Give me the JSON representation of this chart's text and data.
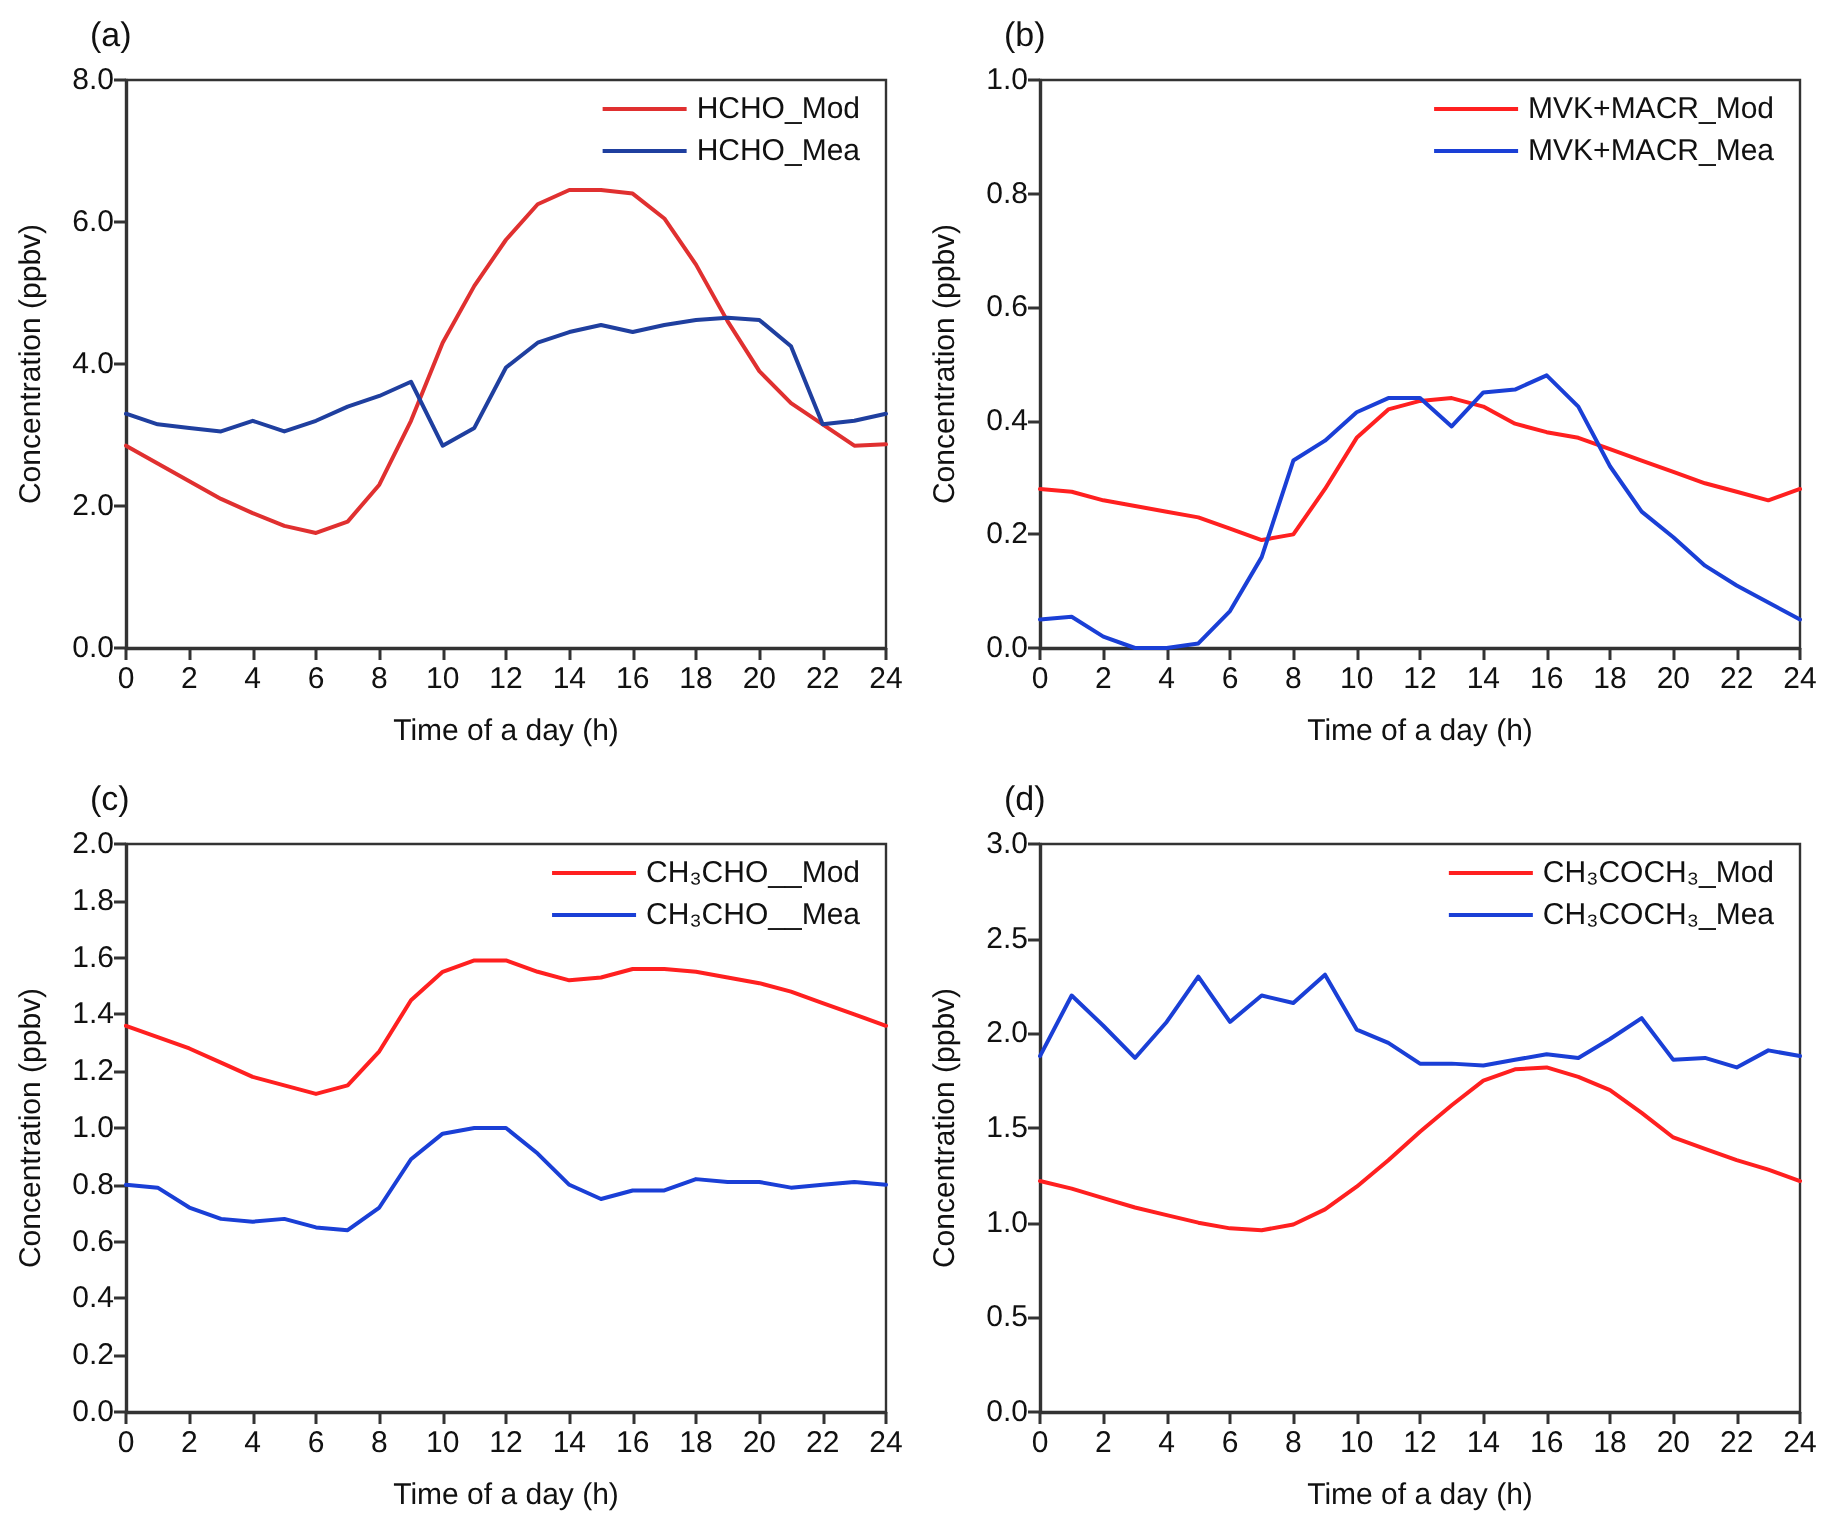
{
  "chart_data": [
    {
      "type": "line",
      "title": "(a)",
      "xlabel": "Time of a day (h)",
      "ylabel": "Concentration (ppbv)",
      "x": [
        0,
        1,
        2,
        3,
        4,
        5,
        6,
        7,
        8,
        9,
        10,
        11,
        12,
        13,
        14,
        15,
        16,
        17,
        18,
        19,
        20,
        21,
        22,
        23,
        24
      ],
      "series": [
        {
          "name": "HCHO_Mod",
          "color": "#e03030",
          "values": [
            2.85,
            2.6,
            2.35,
            2.1,
            1.9,
            1.72,
            1.62,
            1.78,
            2.3,
            3.2,
            4.3,
            5.1,
            5.75,
            6.25,
            6.45,
            6.45,
            6.4,
            6.05,
            5.4,
            4.6,
            3.9,
            3.45,
            3.15,
            2.85,
            2.87
          ]
        },
        {
          "name": "HCHO_Mea",
          "color": "#1f3f9f",
          "values": [
            3.3,
            3.15,
            3.1,
            3.05,
            3.2,
            3.05,
            3.2,
            3.4,
            3.55,
            3.75,
            2.85,
            3.1,
            3.95,
            4.3,
            4.45,
            4.55,
            4.45,
            4.55,
            4.62,
            4.65,
            4.62,
            4.25,
            3.15,
            3.2,
            3.3
          ]
        }
      ],
      "xlim": [
        0,
        24
      ],
      "xticks": [
        0,
        2,
        4,
        6,
        8,
        10,
        12,
        14,
        16,
        18,
        20,
        22,
        24
      ],
      "ylim": [
        0,
        8
      ],
      "yticks": [
        {
          "value": 0,
          "label": "0.0"
        },
        {
          "value": 2,
          "label": "2.0"
        },
        {
          "value": 4,
          "label": "4.0"
        },
        {
          "value": 6,
          "label": "6.0"
        },
        {
          "value": 8,
          "label": "8.0"
        }
      ],
      "grid": false,
      "legend": "top right",
      "marker": "none",
      "line_style": "solid"
    },
    {
      "type": "line",
      "title": "(b)",
      "xlabel": "Time of a day (h)",
      "ylabel": "Concentration (ppbv)",
      "x": [
        0,
        1,
        2,
        3,
        4,
        5,
        6,
        7,
        8,
        9,
        10,
        11,
        12,
        13,
        14,
        15,
        16,
        17,
        18,
        19,
        20,
        21,
        22,
        23,
        24
      ],
      "series": [
        {
          "name": "MVK+MACR_Mod",
          "color": "#ff2020",
          "values": [
            0.28,
            0.275,
            0.26,
            0.25,
            0.24,
            0.23,
            0.21,
            0.19,
            0.2,
            0.28,
            0.37,
            0.42,
            0.435,
            0.44,
            0.425,
            0.395,
            0.38,
            0.37,
            0.35,
            0.33,
            0.31,
            0.29,
            0.275,
            0.26,
            0.28
          ]
        },
        {
          "name": "MVK+MACR_Mea",
          "color": "#1a3fd6",
          "values": [
            0.05,
            0.055,
            0.02,
            0.0,
            0.0,
            0.008,
            0.065,
            0.16,
            0.33,
            0.365,
            0.415,
            0.44,
            0.44,
            0.39,
            0.45,
            0.455,
            0.48,
            0.425,
            0.32,
            0.24,
            0.195,
            0.145,
            0.11,
            0.08,
            0.05
          ]
        }
      ],
      "xlim": [
        0,
        24
      ],
      "xticks": [
        0,
        2,
        4,
        6,
        8,
        10,
        12,
        14,
        16,
        18,
        20,
        22,
        24
      ],
      "ylim": [
        0,
        1
      ],
      "yticks": [
        {
          "value": 0,
          "label": "0.0"
        },
        0.2,
        0.4,
        0.6,
        0.8,
        {
          "value": 1,
          "label": "1.0"
        }
      ],
      "grid": false,
      "legend": "top right",
      "marker": "none",
      "line_style": "solid"
    },
    {
      "type": "line",
      "title": "(c)",
      "xlabel": "Time of a day (h)",
      "ylabel": "Concentration (ppbv)",
      "x": [
        0,
        1,
        2,
        3,
        4,
        5,
        6,
        7,
        8,
        9,
        10,
        11,
        12,
        13,
        14,
        15,
        16,
        17,
        18,
        19,
        20,
        21,
        22,
        23,
        24
      ],
      "series": [
        {
          "name": "CH₃CHO__Mod",
          "color": "#ff2020",
          "values": [
            1.36,
            1.32,
            1.28,
            1.23,
            1.18,
            1.15,
            1.12,
            1.15,
            1.27,
            1.45,
            1.55,
            1.59,
            1.59,
            1.55,
            1.52,
            1.53,
            1.56,
            1.56,
            1.55,
            1.53,
            1.51,
            1.48,
            1.44,
            1.4,
            1.36
          ]
        },
        {
          "name": "CH₃CHO__Mea",
          "color": "#1a3fd6",
          "values": [
            0.8,
            0.79,
            0.72,
            0.68,
            0.67,
            0.68,
            0.65,
            0.64,
            0.72,
            0.89,
            0.98,
            1.0,
            1.0,
            0.91,
            0.8,
            0.75,
            0.78,
            0.78,
            0.82,
            0.81,
            0.81,
            0.79,
            0.8,
            0.81,
            0.8
          ]
        }
      ],
      "xlim": [
        0,
        24
      ],
      "xticks": [
        0,
        2,
        4,
        6,
        8,
        10,
        12,
        14,
        16,
        18,
        20,
        22,
        24
      ],
      "ylim": [
        0,
        2
      ],
      "yticks": [
        {
          "value": 0,
          "label": "0.0"
        },
        0.2,
        0.4,
        0.6,
        0.8,
        {
          "value": 1,
          "label": "1.0"
        },
        1.2,
        1.4,
        1.6,
        1.8,
        {
          "value": 2,
          "label": "2.0"
        }
      ],
      "grid": false,
      "legend": "top right",
      "marker": "none",
      "line_style": "solid"
    },
    {
      "type": "line",
      "title": "(d)",
      "xlabel": "Time of a day (h)",
      "ylabel": "Concentration (ppbv)",
      "x": [
        0,
        1,
        2,
        3,
        4,
        5,
        6,
        7,
        8,
        9,
        10,
        11,
        12,
        13,
        14,
        15,
        16,
        17,
        18,
        19,
        20,
        21,
        22,
        23,
        24
      ],
      "series": [
        {
          "name": "CH₃COCH₃_Mod",
          "color": "#ff2020",
          "values": [
            1.22,
            1.18,
            1.13,
            1.08,
            1.04,
            1.0,
            0.97,
            0.96,
            0.99,
            1.07,
            1.19,
            1.33,
            1.48,
            1.62,
            1.75,
            1.81,
            1.82,
            1.77,
            1.7,
            1.58,
            1.45,
            1.39,
            1.33,
            1.28,
            1.22
          ]
        },
        {
          "name": "CH₃COCH₃_Mea",
          "color": "#1a3fd6",
          "values": [
            1.88,
            2.2,
            2.04,
            1.87,
            2.06,
            2.3,
            2.06,
            2.2,
            2.16,
            2.31,
            2.02,
            1.95,
            1.84,
            1.84,
            1.83,
            1.86,
            1.89,
            1.87,
            1.97,
            2.08,
            1.86,
            1.87,
            1.82,
            1.91,
            1.88
          ]
        }
      ],
      "xlim": [
        0,
        24
      ],
      "xticks": [
        0,
        2,
        4,
        6,
        8,
        10,
        12,
        14,
        16,
        18,
        20,
        22,
        24
      ],
      "ylim": [
        0,
        3
      ],
      "yticks": [
        {
          "value": 0,
          "label": "0.0"
        },
        0.5,
        {
          "value": 1,
          "label": "1.0"
        },
        1.5,
        {
          "value": 2,
          "label": "2.0"
        },
        2.5,
        {
          "value": 3,
          "label": "3.0"
        }
      ],
      "grid": false,
      "legend": "top right",
      "marker": "none",
      "line_style": "solid"
    }
  ]
}
